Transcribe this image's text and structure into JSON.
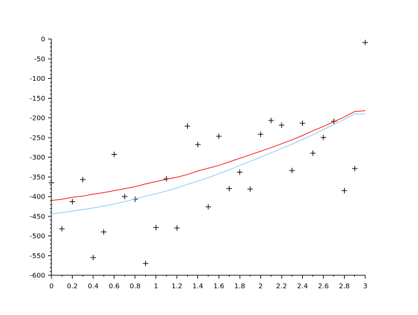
{
  "chart_data": {
    "type": "scatter",
    "title": "",
    "xlabel": "",
    "ylabel": "",
    "xlim": [
      0,
      3
    ],
    "ylim": [
      -600,
      0
    ],
    "x_ticks": [
      0,
      0.2,
      0.4,
      0.6,
      0.8,
      1,
      1.2,
      1.4,
      1.6,
      1.8,
      2,
      2.2,
      2.4,
      2.6,
      2.8,
      3
    ],
    "x_tick_labels": [
      "0",
      "0.2",
      "0.4",
      "0.6",
      "0.8",
      "1",
      "1.2",
      "1.4",
      "1.6",
      "1.8",
      "2",
      "2.2",
      "2.4",
      "2.6",
      "2.8",
      "3"
    ],
    "y_ticks": [
      0,
      -50,
      -100,
      -150,
      -200,
      -250,
      -300,
      -350,
      -400,
      -450,
      -500,
      -550,
      -600
    ],
    "y_tick_labels": [
      "0",
      "-50",
      "-100",
      "-150",
      "-200",
      "-250",
      "-300",
      "-350",
      "-400",
      "-450",
      "-500",
      "-550",
      "-600"
    ],
    "grid": false,
    "series": [
      {
        "type": "scatter",
        "marker": "plus",
        "color": "#000000",
        "x": [
          0,
          0.1,
          0.2,
          0.3,
          0.4,
          0.5,
          0.6,
          0.7,
          0.8,
          0.9,
          1.0,
          1.1,
          1.2,
          1.3,
          1.4,
          1.5,
          1.6,
          1.7,
          1.8,
          1.9,
          2.0,
          2.1,
          2.2,
          2.3,
          2.4,
          2.5,
          2.6,
          2.7,
          2.8,
          2.9,
          3.0
        ],
        "y": [
          -365,
          -482,
          -413,
          -357,
          -555,
          -490,
          -293,
          -400,
          -407,
          -570,
          -479,
          -355,
          -480,
          -221,
          -268,
          -426,
          -247,
          -380,
          -338,
          -381,
          -242,
          -207,
          -219,
          -334,
          -214,
          -290,
          -250,
          -209,
          -385,
          -329,
          -9
        ]
      },
      {
        "type": "line",
        "color": "#ff0000",
        "x": [
          0,
          0.1,
          0.2,
          0.3,
          0.4,
          0.5,
          0.6,
          0.7,
          0.8,
          0.9,
          1.0,
          1.1,
          1.2,
          1.3,
          1.4,
          1.5,
          1.6,
          1.7,
          1.8,
          1.9,
          2.0,
          2.1,
          2.2,
          2.3,
          2.4,
          2.5,
          2.6,
          2.7,
          2.8,
          2.9,
          3.0
        ],
        "y": [
          -410,
          -407,
          -402,
          -399,
          -394,
          -390,
          -385,
          -380,
          -375,
          -368,
          -362,
          -356,
          -351,
          -344,
          -335,
          -328,
          -321,
          -312,
          -303,
          -294,
          -285,
          -276,
          -266,
          -256,
          -245,
          -233,
          -222,
          -210,
          -198,
          -184,
          -182
        ]
      },
      {
        "type": "line",
        "color": "#7ec8f0",
        "x": [
          0,
          0.1,
          0.2,
          0.3,
          0.4,
          0.5,
          0.6,
          0.7,
          0.8,
          0.9,
          1.0,
          1.1,
          1.2,
          1.3,
          1.4,
          1.5,
          1.6,
          1.7,
          1.8,
          1.9,
          2.0,
          2.1,
          2.2,
          2.3,
          2.4,
          2.5,
          2.6,
          2.7,
          2.8,
          2.9,
          3.0
        ],
        "y": [
          -444,
          -441,
          -437,
          -433,
          -429,
          -424,
          -419,
          -413,
          -406,
          -399,
          -393,
          -386,
          -378,
          -369,
          -361,
          -352,
          -342,
          -332,
          -321,
          -311,
          -300,
          -289,
          -278,
          -267,
          -255,
          -243,
          -230,
          -217,
          -204,
          -190,
          -190
        ]
      }
    ]
  }
}
